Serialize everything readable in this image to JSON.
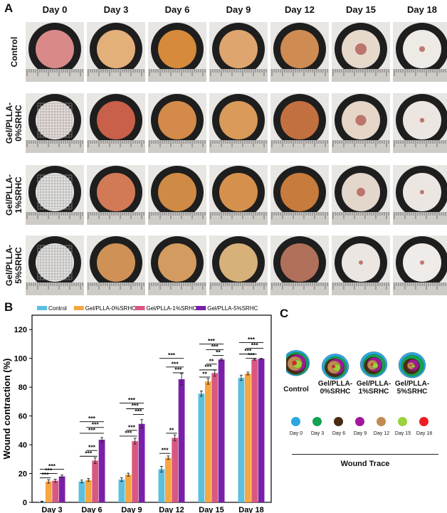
{
  "panels": {
    "a": "A",
    "b": "B",
    "c": "C"
  },
  "photo_grid": {
    "days": [
      "Day 0",
      "Day 3",
      "Day 6",
      "Day 9",
      "Day 12",
      "Day 15",
      "Day 18"
    ],
    "groups": [
      {
        "line1": "Control",
        "line2": "",
        "wound": [
          0.95,
          0.9,
          0.85,
          0.75,
          0.55,
          0.3,
          0.15
        ],
        "tone": [
          "#d98a88",
          "#e3b07a",
          "#d58a3c",
          "#dea56f",
          "#cf8c52",
          "#e7d8cc",
          "#eeeae6"
        ]
      },
      {
        "line1": "Gel/PLLA-",
        "line2": "0%SRHC",
        "wound": [
          0.95,
          0.9,
          0.85,
          0.75,
          0.6,
          0.28,
          0.12
        ],
        "tone": [
          "#e9e0dc",
          "#c9604a",
          "#d48a4a",
          "#d99a5a",
          "#c2703f",
          "#e6d6c8",
          "#ece6e2"
        ]
      },
      {
        "line1": "Gel/PLLA-",
        "line2": "1%SRHC",
        "wound": [
          0.95,
          0.9,
          0.85,
          0.75,
          0.55,
          0.22,
          0.1
        ],
        "tone": [
          "#e7e6e4",
          "#d27a55",
          "#cf8a45",
          "#d5904e",
          "#c77b3c",
          "#e3d6cb",
          "#ece6e2"
        ]
      },
      {
        "line1": "Gel/PLLA-",
        "line2": "5%SRHC",
        "wound": [
          0.95,
          0.88,
          0.82,
          0.7,
          0.45,
          0.1,
          0.05
        ],
        "tone": [
          "#e6e4e2",
          "#cf9156",
          "#d39b60",
          "#d8b07a",
          "#b0705a",
          "#ebe6e2",
          "#efebe8"
        ]
      }
    ]
  },
  "chart_data": {
    "type": "bar",
    "title": "",
    "xlabel": "",
    "ylabel": "Wound contraction (%)",
    "ylim": [
      0,
      130
    ],
    "yticks": [
      0,
      20,
      40,
      60,
      80,
      100,
      120
    ],
    "categories": [
      "Day 3",
      "Day 6",
      "Day 9",
      "Day 12",
      "Day 15",
      "Day 18"
    ],
    "series": [
      {
        "name": "Control",
        "color": "#5bc0de",
        "values": [
          0.5,
          14.5,
          15.8,
          23,
          75.5,
          86.5
        ],
        "errors": [
          0.3,
          1,
          1.2,
          2,
          1.8,
          1.8
        ]
      },
      {
        "name": "Gel/PLLA-0%SRHC",
        "color": "#f5a742",
        "values": [
          14.5,
          15.5,
          19.2,
          31,
          84,
          89.5
        ],
        "errors": [
          1.2,
          1,
          1,
          1.2,
          2,
          1
        ]
      },
      {
        "name": "Gel/PLLA-1%SRHC",
        "color": "#d9587f",
        "values": [
          15,
          29,
          42.5,
          44.8,
          89.8,
          99.2
        ],
        "errors": [
          1,
          2,
          2,
          2,
          2.2,
          0.5
        ]
      },
      {
        "name": "Gel/PLLA-5%SRHC",
        "color": "#7a1fa8",
        "values": [
          18,
          43.5,
          54.5,
          85.5,
          99.2,
          99.8
        ],
        "errors": [
          1,
          1.5,
          3,
          4,
          0.6,
          0.2
        ]
      }
    ],
    "significance": [
      [
        {
          "label": "***",
          "from": 0,
          "to": 1,
          "y": 17
        },
        {
          "label": "***",
          "from": 0,
          "to": 2,
          "y": 20
        },
        {
          "label": "***",
          "from": 0,
          "to": 3,
          "y": 23
        }
      ],
      [
        {
          "label": "***",
          "from": 0,
          "to": 2,
          "y": 32
        },
        {
          "label": "***",
          "from": 1,
          "to": 2,
          "y": 36
        },
        {
          "label": "***",
          "from": 0,
          "to": 3,
          "y": 48
        },
        {
          "label": "***",
          "from": 1,
          "to": 3,
          "y": 52
        },
        {
          "label": "***",
          "from": 0,
          "to": 3,
          "y": 56
        }
      ],
      [
        {
          "label": "***",
          "from": 0,
          "to": 2,
          "y": 46
        },
        {
          "label": "***",
          "from": 1,
          "to": 2,
          "y": 50
        },
        {
          "label": "***",
          "from": 2,
          "to": 3,
          "y": 61
        },
        {
          "label": "***",
          "from": 1,
          "to": 3,
          "y": 65
        },
        {
          "label": "***",
          "from": 0,
          "to": 3,
          "y": 69
        }
      ],
      [
        {
          "label": "***",
          "from": 0,
          "to": 1,
          "y": 34
        },
        {
          "label": "**",
          "from": 1,
          "to": 2,
          "y": 48
        },
        {
          "label": "***",
          "from": 2,
          "to": 3,
          "y": 90
        },
        {
          "label": "***",
          "from": 1,
          "to": 3,
          "y": 94
        },
        {
          "label": "***",
          "from": 0,
          "to": 3,
          "y": 100
        }
      ],
      [
        {
          "label": "**",
          "from": 0,
          "to": 1,
          "y": 87
        },
        {
          "label": "***",
          "from": 0,
          "to": 2,
          "y": 92
        },
        {
          "label": "**",
          "from": 1,
          "to": 2,
          "y": 96
        },
        {
          "label": "**",
          "from": 2,
          "to": 3,
          "y": 102
        },
        {
          "label": "***",
          "from": 1,
          "to": 3,
          "y": 106
        },
        {
          "label": "***",
          "from": 0,
          "to": 3,
          "y": 110
        }
      ],
      [
        {
          "label": "***",
          "from": 1,
          "to": 2,
          "y": 100
        },
        {
          "label": "***",
          "from": 0,
          "to": 2,
          "y": 103
        },
        {
          "label": "***",
          "from": 1,
          "to": 3,
          "y": 107
        },
        {
          "label": "***",
          "from": 0,
          "to": 3,
          "y": 111
        }
      ]
    ]
  },
  "wound_trace": {
    "title": "Wound Trace",
    "groups": [
      {
        "line1": "Control",
        "line2": ""
      },
      {
        "line1": "Gel/PLLA-",
        "line2": "0%SRHC"
      },
      {
        "line1": "Gel/PLLA-",
        "line2": "1%SRHC"
      },
      {
        "line1": "Gel/PLLA-",
        "line2": "5%SRHC"
      }
    ],
    "legend": [
      {
        "label": "Day 0",
        "color": "#2aa7e0"
      },
      {
        "label": "Day 3",
        "color": "#13a350"
      },
      {
        "label": "Day 6",
        "color": "#4a2a12"
      },
      {
        "label": "Day 9",
        "color": "#a0179b"
      },
      {
        "label": "Day 12",
        "color": "#c08a52"
      },
      {
        "label": "Day 15",
        "color": "#9cd23c"
      },
      {
        "label": "Day 18",
        "color": "#ee1c24"
      }
    ]
  }
}
